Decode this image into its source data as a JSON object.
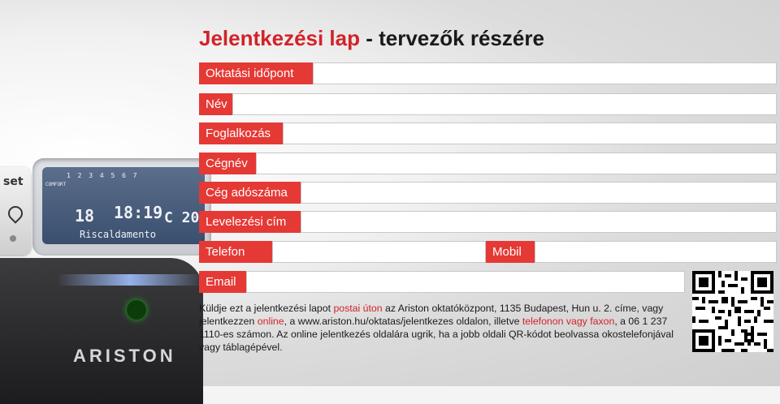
{
  "title": {
    "part1": "Jelentkezési lap",
    "part2": " - tervezők részére"
  },
  "fields": {
    "oktatasi_idopont": "Oktatási időpont",
    "nev": "Név",
    "foglalkozas": "Foglalkozás",
    "cegnev": "Cégnév",
    "ceg_adoszama": "Cég adószáma",
    "levelezesi_cim": "Levelezési cím",
    "telefon": "Telefon",
    "mobil": "Mobil",
    "email": "Email"
  },
  "note": {
    "t1": "Küldje ezt a jelentkezési lapot ",
    "postai": "postai úton",
    "t2": " az Ariston oktatóközpont, 1135 Budapest, Hun u. 2. címe, vagy jelentkezzen ",
    "online": "online",
    "t3": ", a www.ariston.hu/oktatas/jelentkezes oldalon, illetve ",
    "telefonon": "telefonon vagy faxon",
    "t4": ", a 06 1 237 1110-es számon. Az online jelentkezés oldalára ugrik, ha a jobb oldali QR-kódot beolvassa okostelefonjával vagy táblagépével."
  },
  "device": {
    "set_label": "set",
    "lcd_digits": "1 2 3 4 5 6 7",
    "comfort": "COMFORT",
    "temp": "18",
    "time": "18:19",
    "mode": "C 20",
    "status": "Riscaldamento",
    "brand": "ARISTON"
  },
  "colors": {
    "accent": "#e53935",
    "red_text": "#d2232a"
  }
}
